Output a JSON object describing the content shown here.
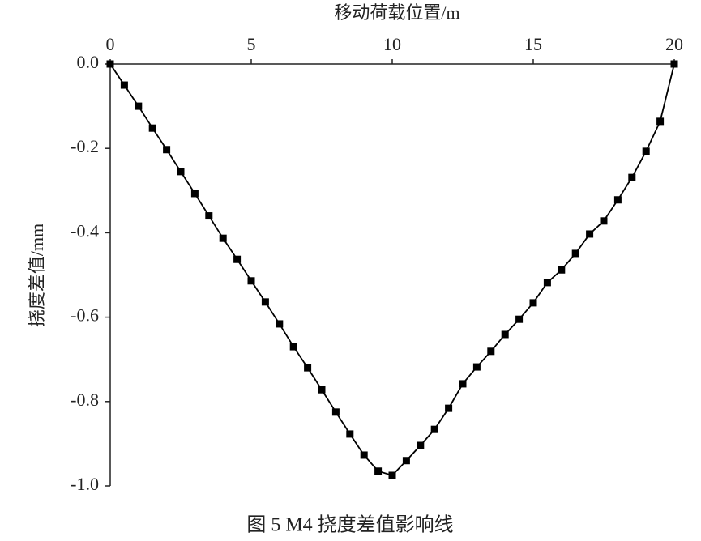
{
  "chart_data": {
    "type": "line",
    "title": "图 5 M4 挠度差值影响线",
    "x_label": "移动荷载位置/m",
    "y_label": "挠度差值/mm",
    "x": [
      0,
      0.5,
      1.0,
      1.5,
      2.0,
      2.5,
      3.0,
      3.5,
      4.0,
      4.5,
      5.0,
      5.5,
      6.0,
      6.5,
      7.0,
      7.5,
      8.0,
      8.5,
      9.0,
      9.5,
      10.0,
      10.5,
      11.0,
      11.5,
      12.0,
      12.5,
      13.0,
      13.5,
      14.0,
      14.5,
      15.0,
      15.5,
      16.0,
      16.5,
      17.0,
      17.5,
      18.0,
      18.5,
      19.0,
      19.5,
      20
    ],
    "series": [
      {
        "color": "#000000",
        "values": [
          0,
          -0.05,
          -0.1,
          -0.152,
          -0.203,
          -0.255,
          -0.307,
          -0.36,
          -0.413,
          -0.463,
          -0.514,
          -0.564,
          -0.616,
          -0.67,
          -0.72,
          -0.772,
          -0.825,
          -0.877,
          -0.927,
          -0.965,
          -0.975,
          -0.94,
          -0.904,
          -0.866,
          -0.816,
          -0.758,
          -0.718,
          -0.681,
          -0.641,
          -0.605,
          -0.566,
          -0.518,
          -0.488,
          -0.449,
          -0.403,
          -0.372,
          -0.322,
          -0.269,
          -0.207,
          -0.136,
          0
        ]
      }
    ],
    "xlim": [
      0,
      20
    ],
    "xticks": [
      0,
      5,
      10,
      15,
      20
    ],
    "ylim": [
      -1,
      0
    ],
    "yticks": [
      {
        "value": 0,
        "label": "0.0"
      },
      -0.2,
      -0.4,
      -0.6,
      -0.8,
      {
        "value": -1,
        "label": "-1.0"
      }
    ],
    "grid": false
  }
}
